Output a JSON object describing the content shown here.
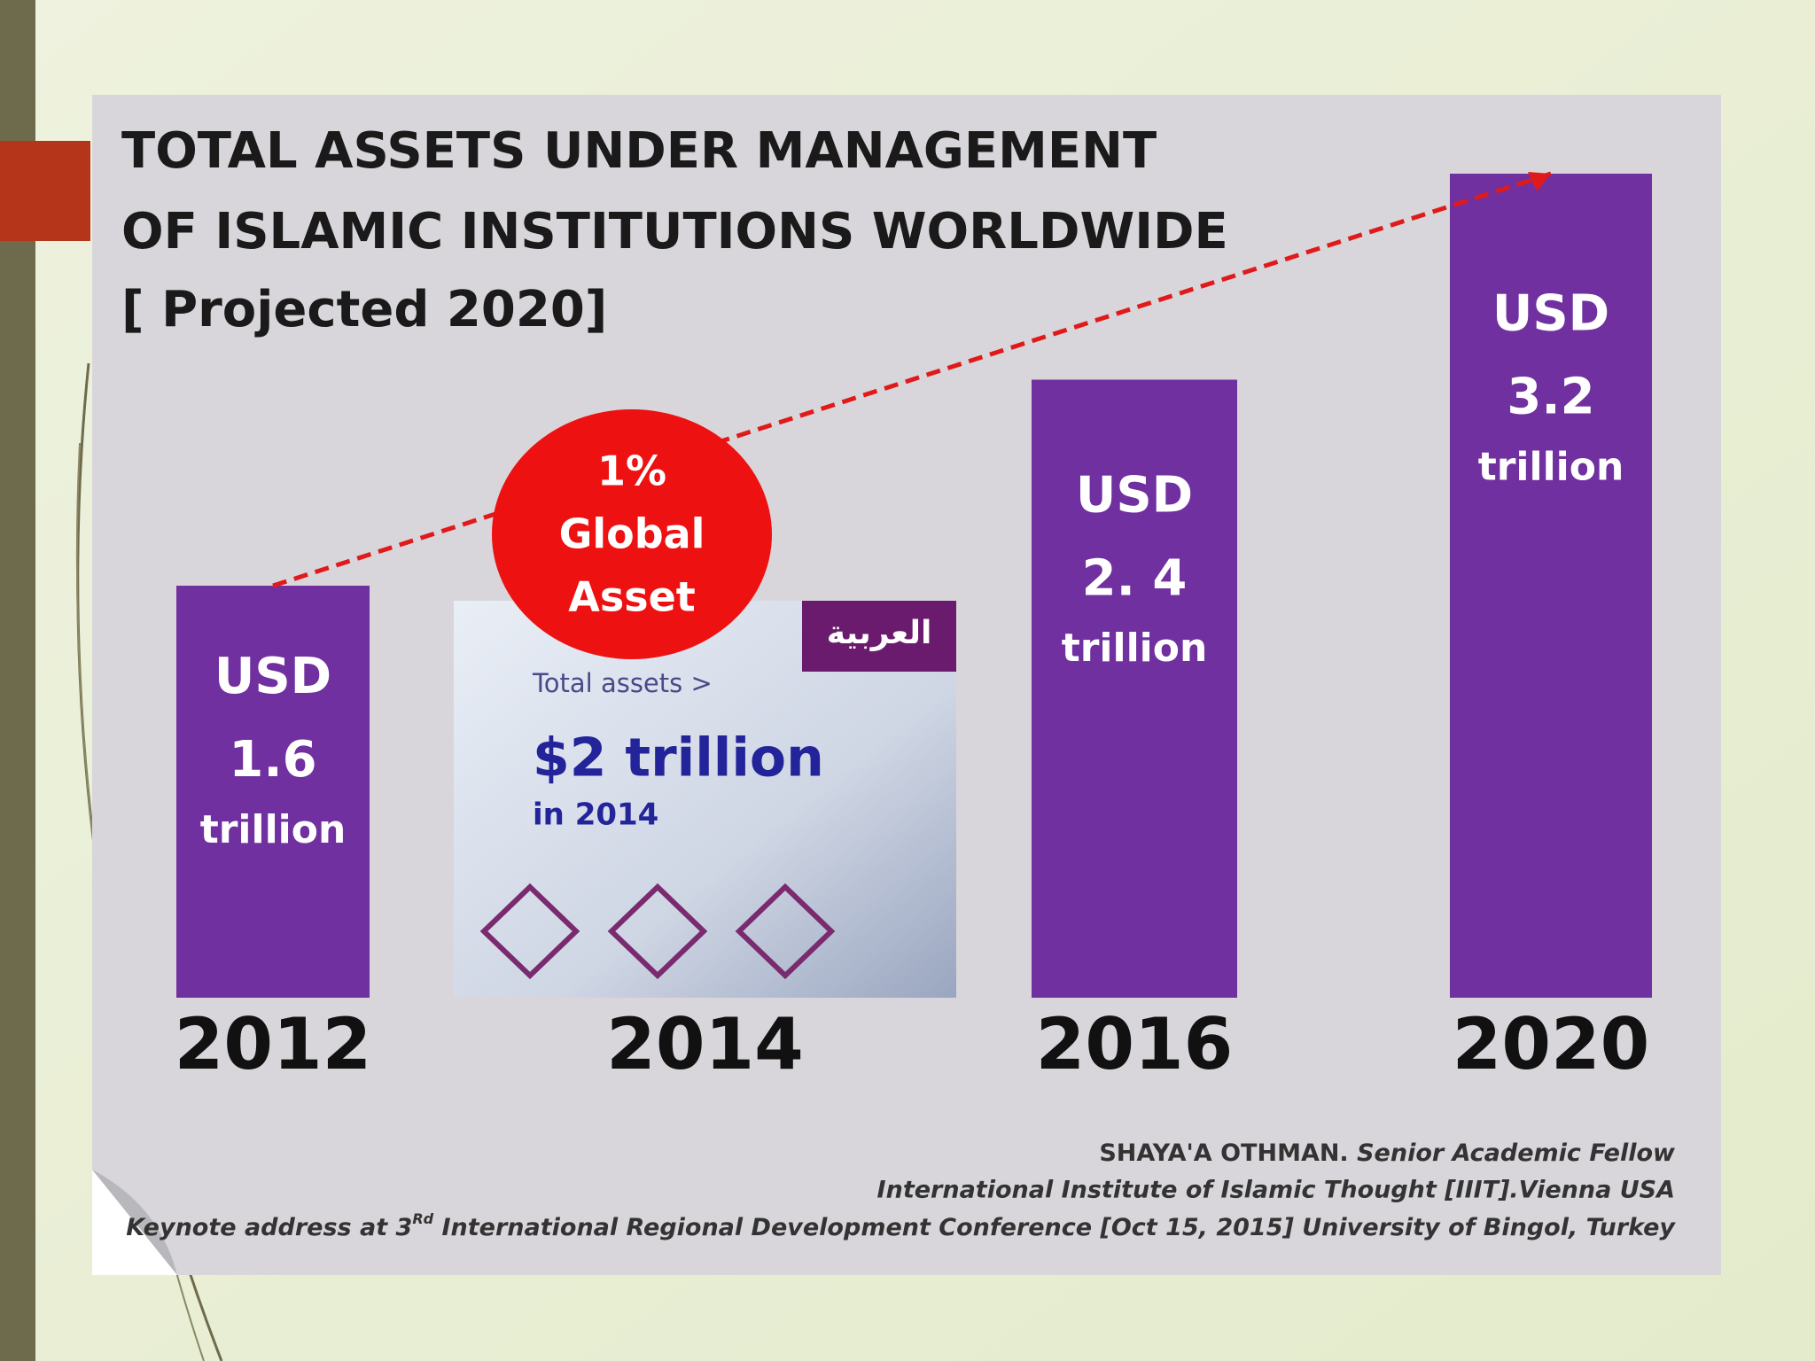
{
  "chart_data": {
    "type": "bar",
    "title": [
      "TOTAL ASSETS UNDER MANAGEMENT",
      "OF ISLAMIC INSTITUTIONS WORLDWIDE"
    ],
    "subtitle": "[ Projected 2020]",
    "categories": [
      "2012",
      "2014",
      "2016",
      "2020"
    ],
    "values": [
      1.6,
      null,
      2.4,
      3.2
    ],
    "value_labels": [
      [
        "USD",
        "1.6",
        "trillion"
      ],
      null,
      [
        "USD",
        "2. 4",
        "trillion"
      ],
      [
        "USD",
        "3.2",
        "trillion"
      ]
    ],
    "color": "#7030a0",
    "annotation": [
      "1%",
      "Global",
      "Asset"
    ],
    "inset": {
      "logo": "العربية",
      "text": [
        "Total assets >",
        "$2 trillion",
        "in 2014"
      ]
    },
    "source": [
      {
        "name": "SHAYA'A OTHMAN.",
        "role": " Senior Academic Fellow"
      },
      {
        "text": "International Institute of Islamic Thought [IIIT].Vienna USA"
      },
      {
        "before": "Keynote address at 3",
        "sup": "Rd",
        "after": " International Regional Development Conference [Oct 15, 2015] University of Bingol, Turkey"
      }
    ]
  }
}
